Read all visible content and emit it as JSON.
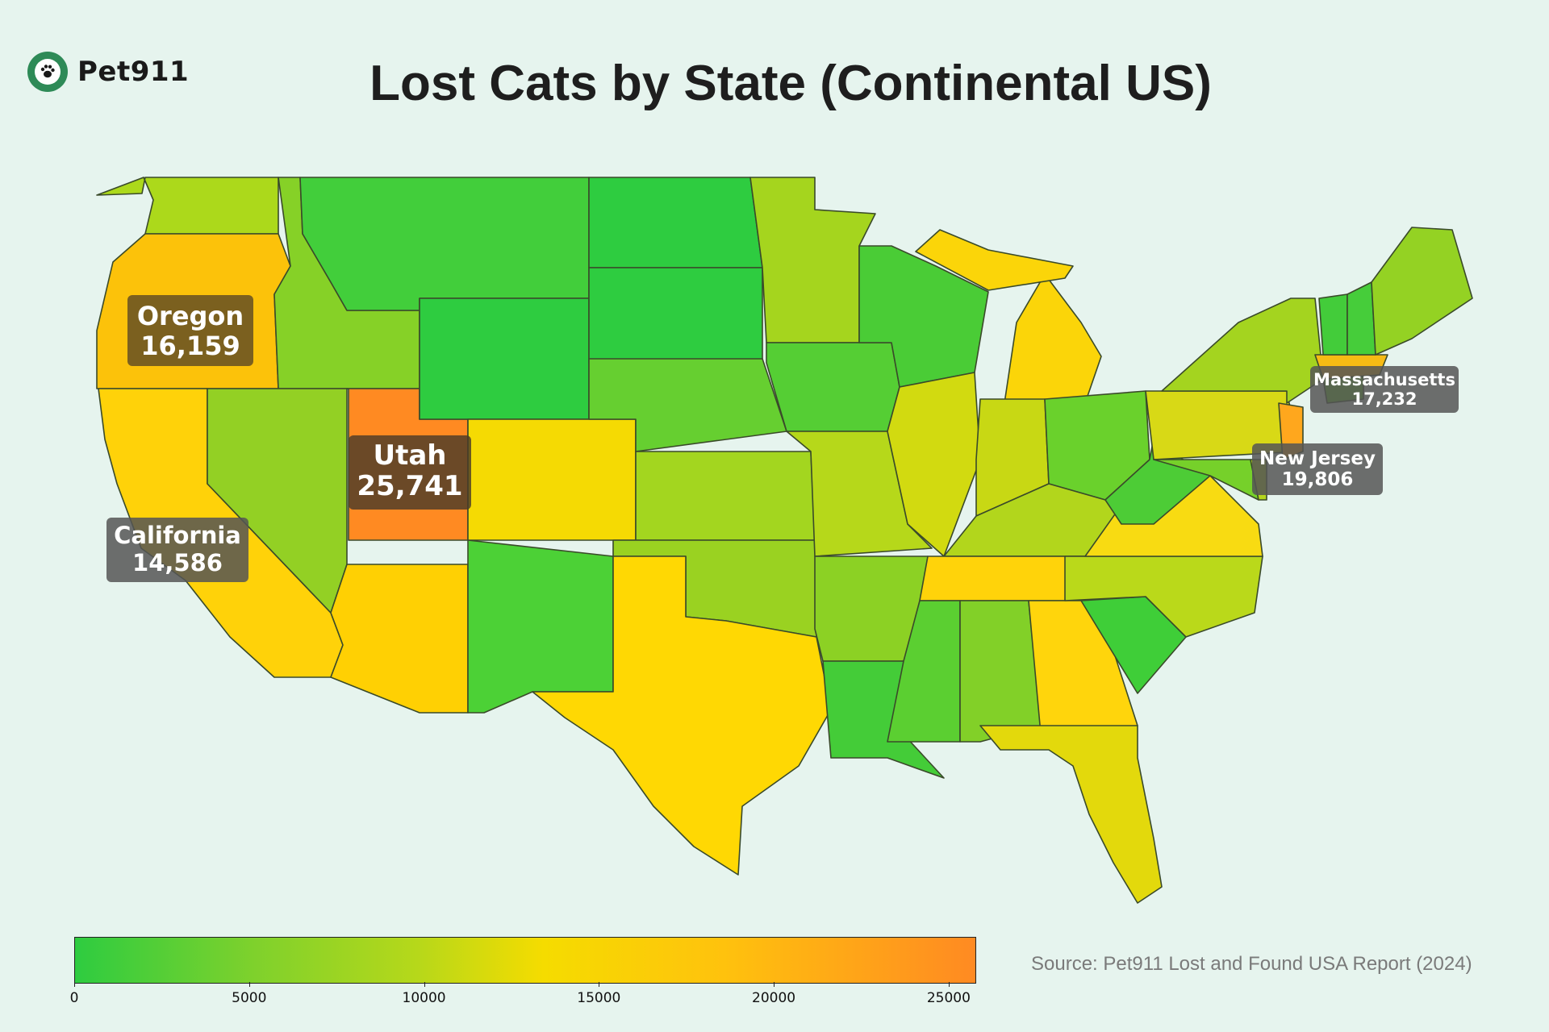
{
  "brand": {
    "name": "Pet911",
    "icon": "paw-icon"
  },
  "title": "Lost Cats by State (Continental US)",
  "source": "Source: Pet911 Lost and Found USA Report (2024)",
  "chart_data": {
    "type": "choropleth",
    "title": "Lost Cats by State (Continental US)",
    "colorbar": {
      "range": [
        0,
        25741
      ],
      "ticks": [
        0,
        5000,
        10000,
        15000,
        20000,
        25000
      ],
      "tick_labels": [
        "0",
        "5000",
        "10000",
        "15000",
        "20000",
        "25000"
      ],
      "colors": [
        "#2ecc40",
        "#7fd12c",
        "#b6d81a",
        "#f5dc00",
        "#ffc20d",
        "#ff8a22"
      ]
    },
    "callouts": [
      {
        "state": "Oregon",
        "value": "16,159"
      },
      {
        "state": "Utah",
        "value": "25,741"
      },
      {
        "state": "California",
        "value": "14,586"
      },
      {
        "state": "Massachusetts",
        "value": "17,232"
      },
      {
        "state": "New Jersey",
        "value": "19,806"
      }
    ],
    "states": [
      {
        "name": "Washington",
        "value": 8200,
        "color": "#acd91b"
      },
      {
        "name": "Oregon",
        "value": 16159,
        "color": "#fcc20a"
      },
      {
        "name": "California",
        "value": 14586,
        "color": "#ffd209"
      },
      {
        "name": "Idaho",
        "value": 6500,
        "color": "#86d127"
      },
      {
        "name": "Nevada",
        "value": 7300,
        "color": "#93d024"
      },
      {
        "name": "Utah",
        "value": 25741,
        "color": "#ff8a22"
      },
      {
        "name": "Arizona",
        "value": 15600,
        "color": "#ffd003"
      },
      {
        "name": "Montana",
        "value": 2500,
        "color": "#42ce3b"
      },
      {
        "name": "Wyoming",
        "value": 1300,
        "color": "#2ecc40"
      },
      {
        "name": "Colorado",
        "value": 13300,
        "color": "#f5da03"
      },
      {
        "name": "New Mexico",
        "value": 2300,
        "color": "#4cd136"
      },
      {
        "name": "North Dakota",
        "value": 1200,
        "color": "#2ecc40"
      },
      {
        "name": "South Dakota",
        "value": 1200,
        "color": "#2ecc40"
      },
      {
        "name": "Nebraska",
        "value": 4700,
        "color": "#66cf30"
      },
      {
        "name": "Kansas",
        "value": 8000,
        "color": "#a3d61f"
      },
      {
        "name": "Oklahoma",
        "value": 7600,
        "color": "#9ad221"
      },
      {
        "name": "Texas",
        "value": 14000,
        "color": "#ffd803"
      },
      {
        "name": "Minnesota",
        "value": 8200,
        "color": "#a5d51e"
      },
      {
        "name": "Iowa",
        "value": 4200,
        "color": "#55ce34"
      },
      {
        "name": "Missouri",
        "value": 9100,
        "color": "#b6d81a"
      },
      {
        "name": "Arkansas",
        "value": 6800,
        "color": "#8cd124"
      },
      {
        "name": "Louisiana",
        "value": 3000,
        "color": "#44cc38"
      },
      {
        "name": "Wisconsin",
        "value": 3500,
        "color": "#4acc36"
      },
      {
        "name": "Illinois",
        "value": 11000,
        "color": "#d2da10"
      },
      {
        "name": "Michigan",
        "value": 14200,
        "color": "#fbd509"
      },
      {
        "name": "Indiana",
        "value": 10400,
        "color": "#c8d814"
      },
      {
        "name": "Ohio",
        "value": 4800,
        "color": "#6ad12c"
      },
      {
        "name": "Kentucky",
        "value": 9000,
        "color": "#b2d61c"
      },
      {
        "name": "Tennessee",
        "value": 15400,
        "color": "#ffd30a"
      },
      {
        "name": "Mississippi",
        "value": 4400,
        "color": "#5bcf31"
      },
      {
        "name": "Alabama",
        "value": 6200,
        "color": "#82d028"
      },
      {
        "name": "Georgia",
        "value": 14800,
        "color": "#ffd50c"
      },
      {
        "name": "Florida",
        "value": 12100,
        "color": "#e3d90c"
      },
      {
        "name": "South Carolina",
        "value": 2600,
        "color": "#3fce38"
      },
      {
        "name": "North Carolina",
        "value": 9300,
        "color": "#bad91a"
      },
      {
        "name": "Virginia",
        "value": 13700,
        "color": "#f8db12"
      },
      {
        "name": "West Virginia",
        "value": 3600,
        "color": "#4dcc36"
      },
      {
        "name": "Pennsylvania",
        "value": 11500,
        "color": "#d8d916"
      },
      {
        "name": "New York",
        "value": 8100,
        "color": "#a4d41f"
      },
      {
        "name": "Maryland",
        "value": 6000,
        "color": "#76d02a"
      },
      {
        "name": "Delaware",
        "value": 9000,
        "color": "#b4d61c"
      },
      {
        "name": "New Jersey",
        "value": 19806,
        "color": "#ffa71d"
      },
      {
        "name": "Connecticut",
        "value": 5500,
        "color": "#6ccf2d"
      },
      {
        "name": "Massachusetts",
        "value": 17232,
        "color": "#f7bb14"
      },
      {
        "name": "Vermont",
        "value": 3000,
        "color": "#43cc3a"
      },
      {
        "name": "New Hampshire",
        "value": 3200,
        "color": "#46cd3a"
      },
      {
        "name": "Maine",
        "value": 7400,
        "color": "#94d223"
      }
    ]
  }
}
